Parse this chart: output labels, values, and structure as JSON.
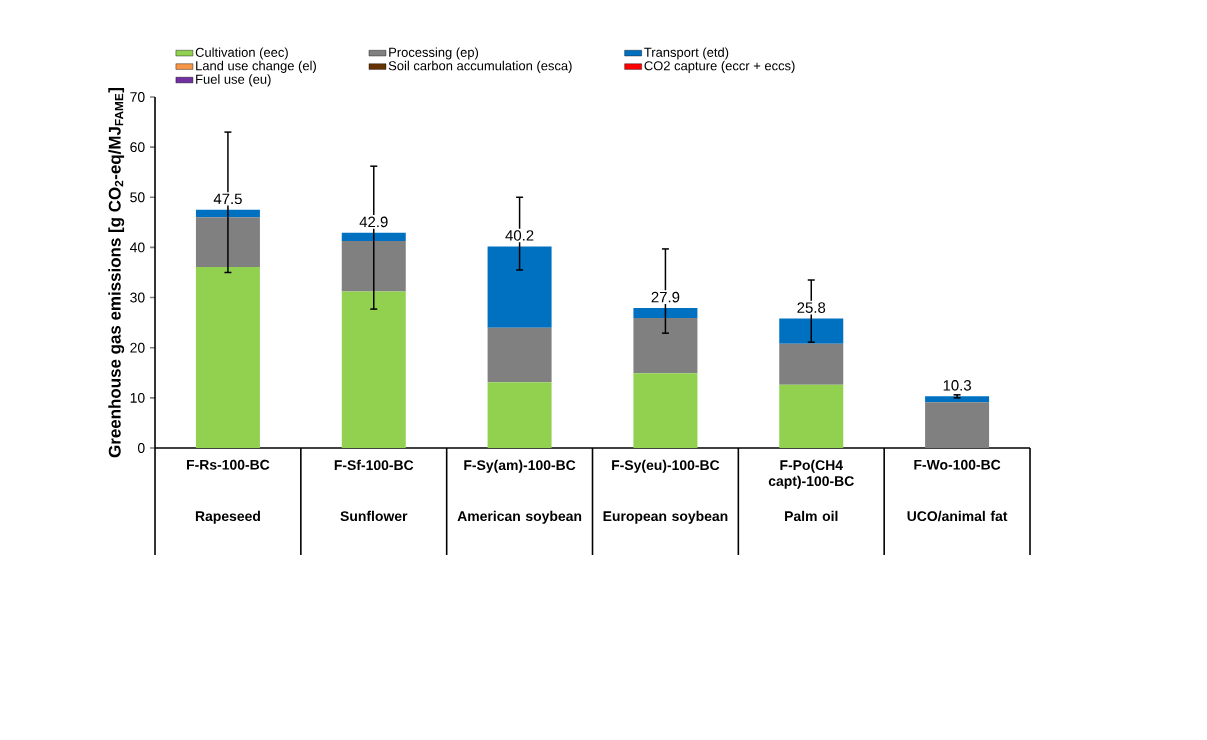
{
  "chart_data": {
    "type": "bar",
    "stacked": true,
    "ylabel": "Greenhouse gas emissions  [g CO$_{2}$-eq/MJ$_{FAME}$]",
    "categories": [
      "F-Rs-100-BC",
      "F-Sf-100-BC",
      "F-Sy(am)-100-BC",
      "F-Sy(eu)-100-BC",
      "F-Po(CH4 capt)-100-BC",
      "F-Wo-100-BC"
    ],
    "annotations": [
      "Rapeseed",
      "Sunflower",
      "American soybean",
      "European soybean",
      "Palm oil",
      "UCO/animal fat"
    ],
    "series": [
      {
        "name": "Cultivation (eec)",
        "color": "#92d050",
        "values": [
          36.1,
          31.2,
          13.1,
          14.9,
          12.6,
          0
        ]
      },
      {
        "name": "Processing (ep)",
        "color": "#808080",
        "values": [
          9.9,
          10.1,
          10.9,
          11.0,
          8.2,
          9.1
        ]
      },
      {
        "name": "Transport (etd)",
        "color": "#0070c0",
        "values": [
          1.5,
          1.6,
          16.2,
          2.0,
          5.0,
          1.2
        ],
        "errors": [
          [
            35.0,
            63.0
          ],
          [
            27.7,
            56.2
          ],
          [
            35.5,
            50.0
          ],
          [
            22.9,
            39.7
          ],
          [
            21.1,
            33.5
          ],
          [
            10.0,
            10.6
          ]
        ]
      },
      {
        "name": "Land use change (el)",
        "color": "#f79646",
        "values": [
          0,
          0,
          0,
          0,
          0,
          0
        ]
      },
      {
        "name": "Soil carbon accumulation (esca)",
        "color": "#663300",
        "values": [
          0,
          0,
          0,
          0,
          0,
          0
        ]
      },
      {
        "name": "CO2 capture (eccr + eccs)",
        "color": "#ff0000",
        "values": [
          0,
          0,
          0,
          0,
          0,
          0
        ]
      },
      {
        "name": "Fuel use (eu)",
        "color": "#7030a0",
        "values": [
          0,
          0,
          0,
          0,
          0,
          0
        ]
      }
    ],
    "totals": [
      "47.5",
      "42.9",
      "40.2",
      "27.9",
      "25.8",
      "10.3"
    ],
    "ylim": [
      0,
      70
    ],
    "yticks": [
      0,
      10,
      20,
      30,
      40,
      50,
      60,
      70
    ],
    "legend": "top",
    "grid": false
  }
}
